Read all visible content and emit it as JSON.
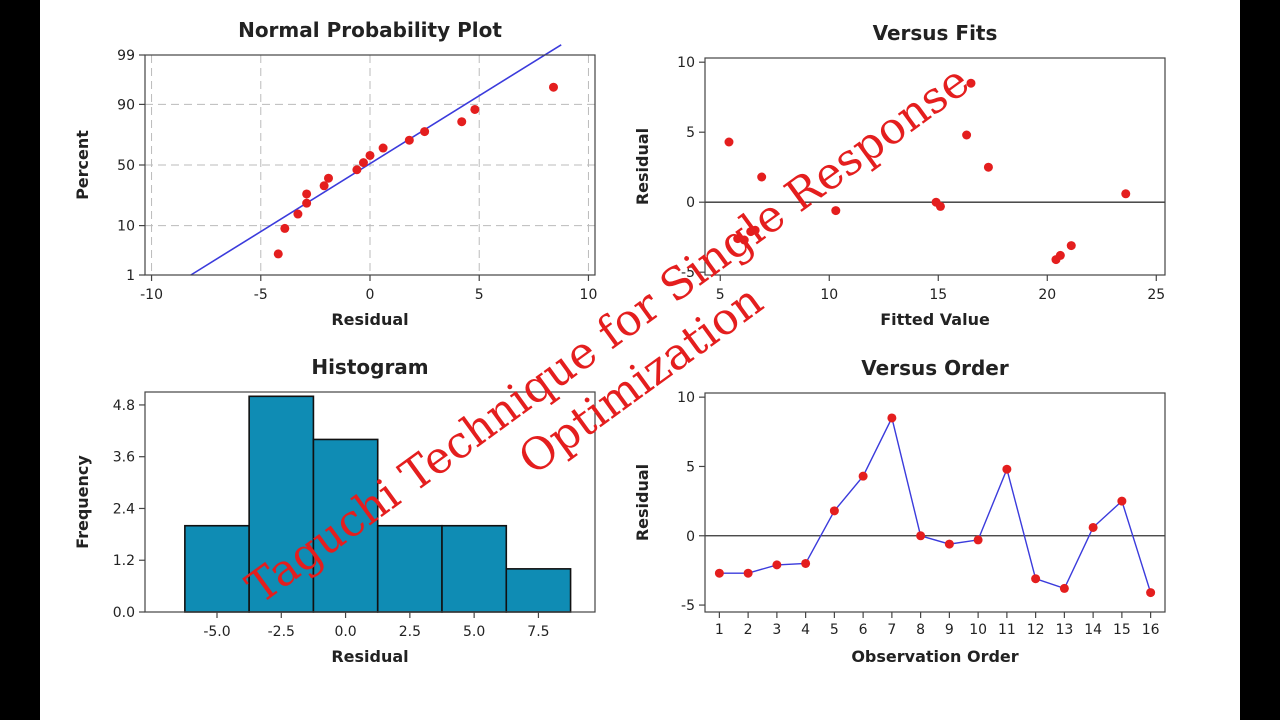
{
  "watermark": {
    "line1": "Taguchi Technique for Single Response",
    "line2": "Optimization",
    "color": "#e41e1e"
  },
  "chart_data": [
    {
      "type": "scatter",
      "title": "Normal Probability Plot",
      "xlabel": "Residual",
      "ylabel": "Percent",
      "xlim": [
        -10.3,
        10.3
      ],
      "x_ticks": [
        -10,
        -5,
        0,
        5,
        10
      ],
      "y_ticks": [
        1,
        10,
        50,
        90,
        99
      ],
      "y_scale": "normal-probability",
      "grid": true,
      "points": [
        {
          "x": -4.2,
          "y": 3
        },
        {
          "x": -3.9,
          "y": 9
        },
        {
          "x": -3.3,
          "y": 15
        },
        {
          "x": -2.9,
          "y": 21
        },
        {
          "x": -2.9,
          "y": 27
        },
        {
          "x": -2.1,
          "y": 33
        },
        {
          "x": -1.9,
          "y": 39
        },
        {
          "x": -0.6,
          "y": 46
        },
        {
          "x": -0.3,
          "y": 52
        },
        {
          "x": 0.0,
          "y": 58
        },
        {
          "x": 0.6,
          "y": 64
        },
        {
          "x": 1.8,
          "y": 70
        },
        {
          "x": 2.5,
          "y": 76
        },
        {
          "x": 4.2,
          "y": 82
        },
        {
          "x": 4.8,
          "y": 88
        },
        {
          "x": 8.4,
          "y": 95
        }
      ],
      "fit_line": [
        {
          "x": -8.2,
          "y": 1
        },
        {
          "x": 8.0,
          "y": 99
        }
      ],
      "point_color": "#e41e1e",
      "line_color": "#3b3bdc"
    },
    {
      "type": "scatter",
      "title": "Versus Fits",
      "xlabel": "Fitted Value",
      "ylabel": "Residual",
      "xlim": [
        4.3,
        25.4
      ],
      "ylim": [
        -5.2,
        10.3
      ],
      "x_ticks": [
        5,
        10,
        15,
        20,
        25
      ],
      "y_ticks": [
        -5,
        0,
        5,
        10
      ],
      "reference_line": 0,
      "points": [
        {
          "x": 5.4,
          "y": 4.3
        },
        {
          "x": 5.8,
          "y": -2.6
        },
        {
          "x": 6.1,
          "y": -2.7
        },
        {
          "x": 6.4,
          "y": -2.1
        },
        {
          "x": 6.6,
          "y": -2.0
        },
        {
          "x": 6.9,
          "y": 1.8
        },
        {
          "x": 10.3,
          "y": -0.6
        },
        {
          "x": 14.9,
          "y": 0.0
        },
        {
          "x": 15.1,
          "y": -0.3
        },
        {
          "x": 16.3,
          "y": 4.8
        },
        {
          "x": 16.5,
          "y": 8.5
        },
        {
          "x": 17.3,
          "y": 2.5
        },
        {
          "x": 20.4,
          "y": -4.1
        },
        {
          "x": 20.6,
          "y": -3.8
        },
        {
          "x": 21.1,
          "y": -3.1
        },
        {
          "x": 23.6,
          "y": 0.6
        }
      ],
      "point_color": "#e41e1e"
    },
    {
      "type": "bar",
      "title": "Histogram",
      "xlabel": "Residual",
      "ylabel": "Frequency",
      "bins": [
        {
          "from": -6.25,
          "to": -3.75,
          "count": 2
        },
        {
          "from": -3.75,
          "to": -1.25,
          "count": 5
        },
        {
          "from": -1.25,
          "to": 1.25,
          "count": 4
        },
        {
          "from": 1.25,
          "to": 3.75,
          "count": 2
        },
        {
          "from": 3.75,
          "to": 6.25,
          "count": 2
        },
        {
          "from": 6.25,
          "to": 8.75,
          "count": 1
        }
      ],
      "xlim": [
        -7.8,
        9.7
      ],
      "ylim": [
        0,
        5.1
      ],
      "x_ticks": [
        -5.0,
        -2.5,
        0.0,
        2.5,
        5.0,
        7.5
      ],
      "x_tick_labels": [
        "-5.0",
        "-2.5",
        "0.0",
        "2.5",
        "5.0",
        "7.5"
      ],
      "y_ticks": [
        0.0,
        1.2,
        2.4,
        3.6,
        4.8
      ],
      "y_tick_labels": [
        "0.0",
        "1.2",
        "2.4",
        "3.6",
        "4.8"
      ],
      "bar_color": "#0f8cb4"
    },
    {
      "type": "line",
      "title": "Versus Order",
      "xlabel": "Observation Order",
      "ylabel": "Residual",
      "xlim": [
        0.5,
        16.5
      ],
      "ylim": [
        -5.5,
        10.3
      ],
      "x_ticks": [
        1,
        2,
        3,
        4,
        5,
        6,
        7,
        8,
        9,
        10,
        11,
        12,
        13,
        14,
        15,
        16
      ],
      "y_ticks": [
        -5,
        0,
        5,
        10
      ],
      "reference_line": 0,
      "x": [
        1,
        2,
        3,
        4,
        5,
        6,
        7,
        8,
        9,
        10,
        11,
        12,
        13,
        14,
        15,
        16
      ],
      "values": [
        -2.7,
        -2.7,
        -2.1,
        -2.0,
        1.8,
        4.3,
        8.5,
        0.0,
        -0.6,
        -0.3,
        4.8,
        -3.1,
        -3.8,
        0.6,
        2.5,
        -4.1
      ],
      "point_color": "#e41e1e",
      "line_color": "#3b3bdc"
    }
  ]
}
